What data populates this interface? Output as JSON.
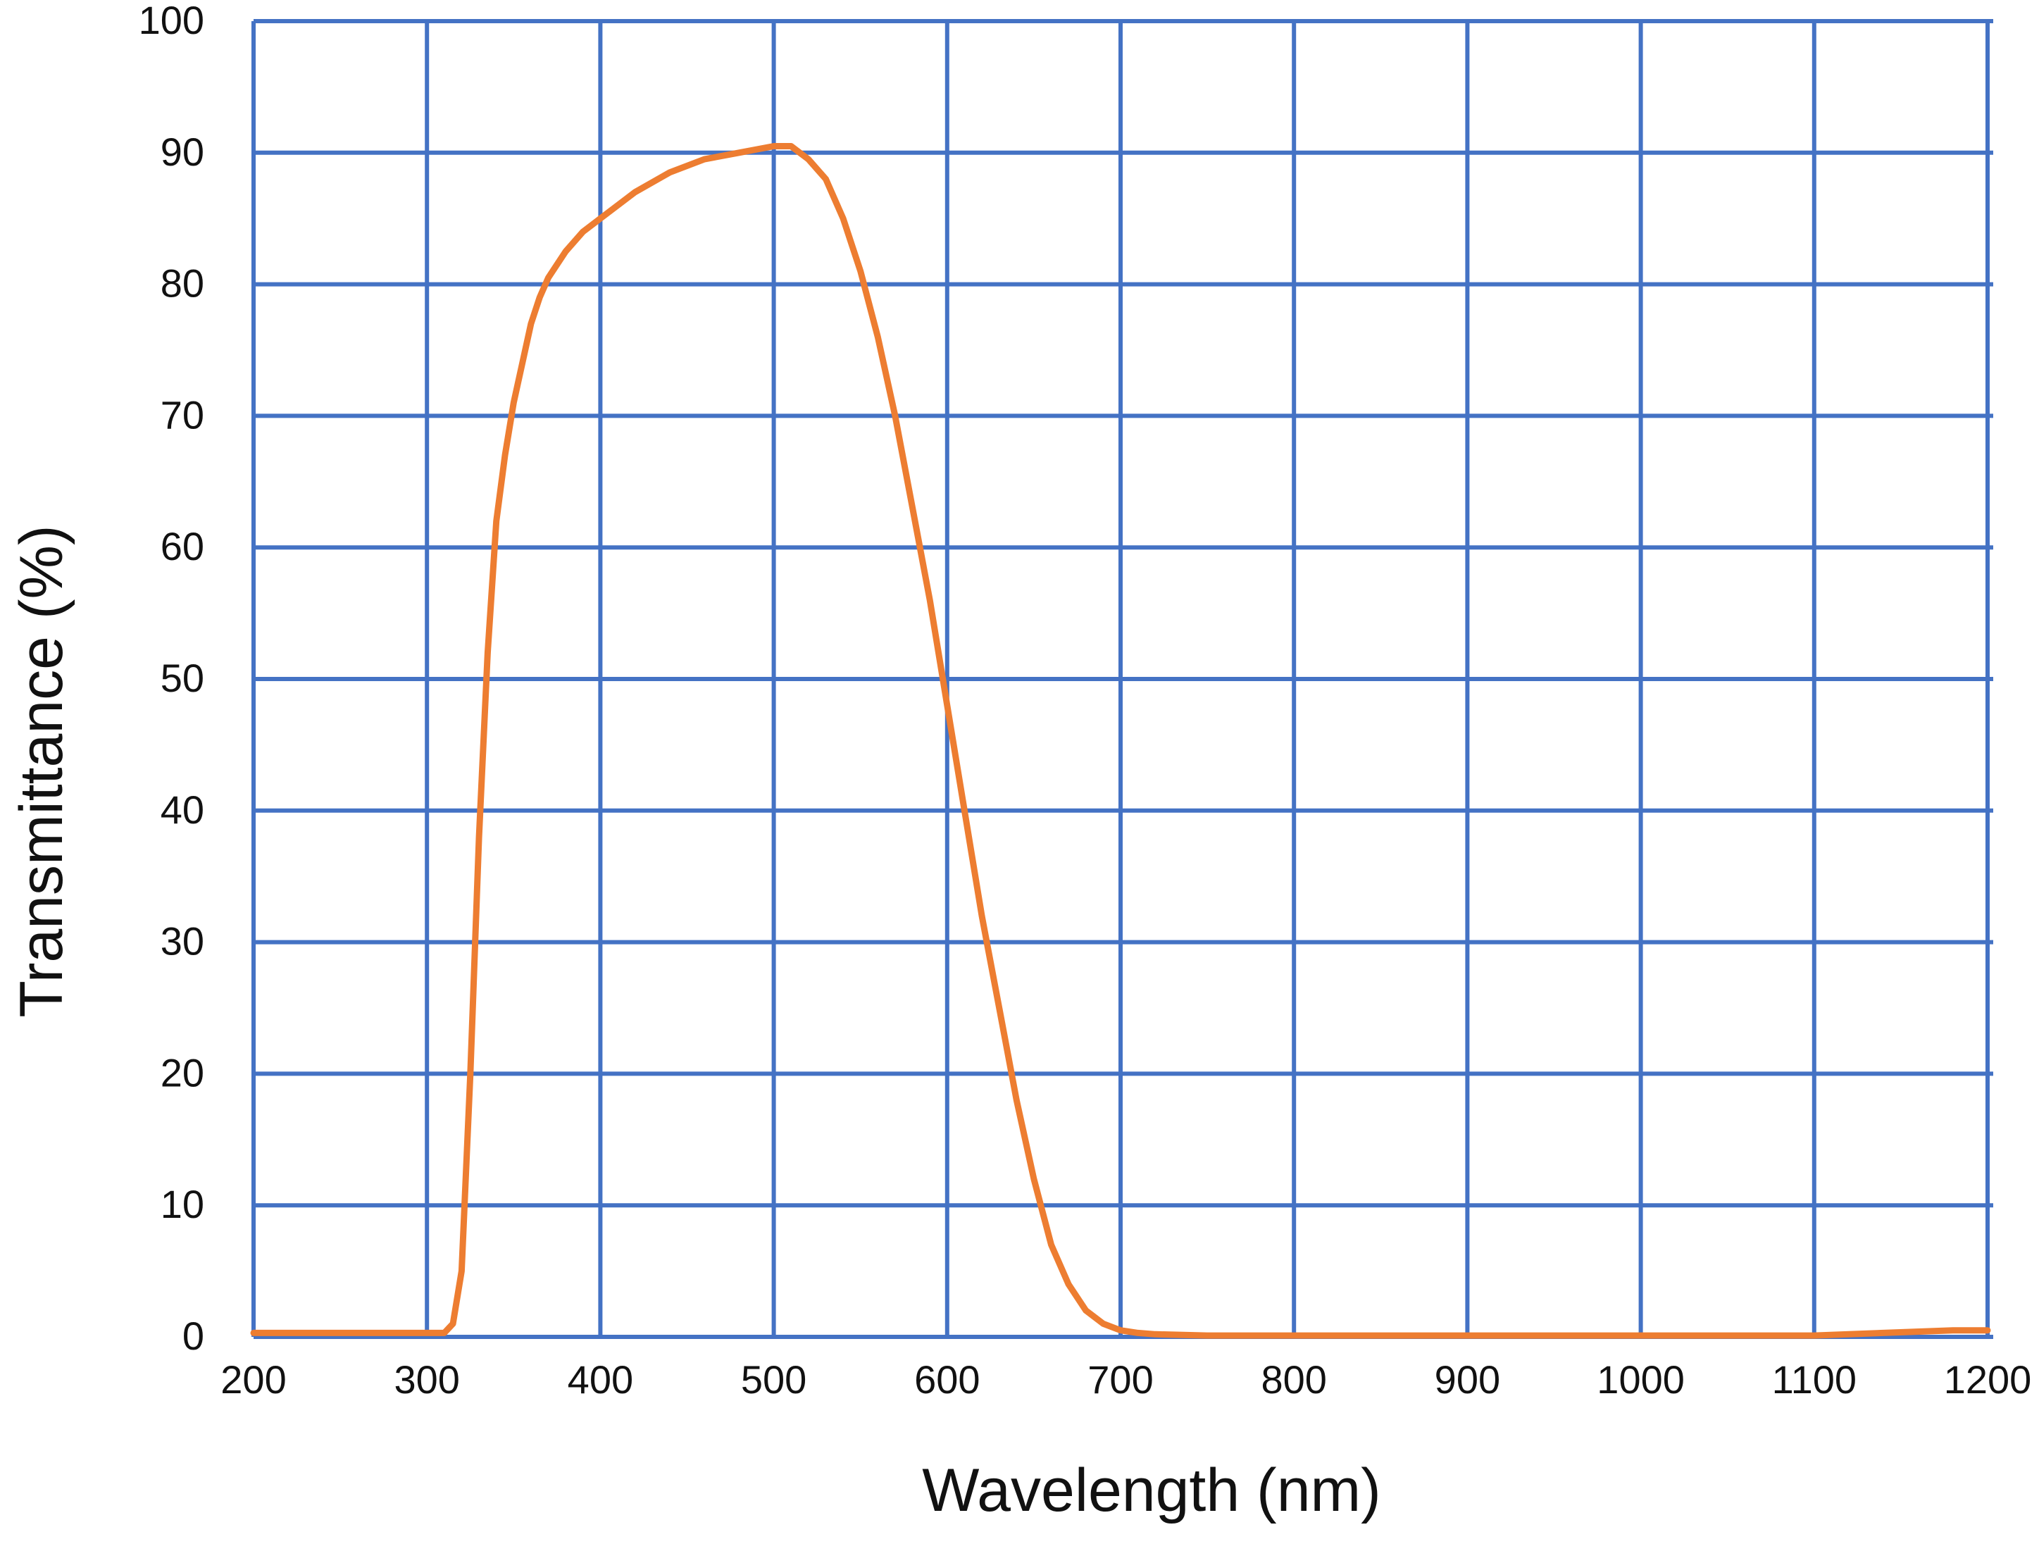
{
  "chart_data": {
    "type": "line",
    "title": "",
    "xlabel": "Wavelength (nm)",
    "ylabel": "Transmittance (%)",
    "xlim": [
      200,
      1200
    ],
    "ylim": [
      0,
      100
    ],
    "x_ticks": [
      200,
      300,
      400,
      500,
      600,
      700,
      800,
      900,
      1000,
      1100,
      1200
    ],
    "x_tick_labels": [
      "200",
      "300",
      "400",
      "500",
      "600",
      "700",
      "800",
      "900",
      "1000",
      "1100",
      "1200"
    ],
    "y_ticks": [
      0,
      10,
      20,
      30,
      40,
      50,
      60,
      70,
      80,
      90,
      100
    ],
    "y_tick_labels": [
      "0",
      "10",
      "20",
      "30",
      "40",
      "50",
      "60",
      "70",
      "80",
      "90",
      "100"
    ],
    "grid": true,
    "legend": "none",
    "colors": {
      "grid": "#4472c4",
      "series": "#ed7d31"
    },
    "series": [
      {
        "name": "Transmittance",
        "x": [
          200,
          250,
          300,
          310,
          315,
          320,
          325,
          330,
          335,
          340,
          345,
          350,
          355,
          360,
          365,
          370,
          380,
          390,
          400,
          420,
          440,
          460,
          480,
          500,
          510,
          520,
          530,
          540,
          550,
          560,
          570,
          580,
          590,
          600,
          610,
          620,
          630,
          640,
          650,
          660,
          670,
          680,
          690,
          700,
          710,
          720,
          750,
          800,
          900,
          1000,
          1100,
          1180,
          1200
        ],
        "y": [
          0.3,
          0.3,
          0.3,
          0.3,
          1,
          5,
          20,
          38,
          52,
          62,
          67,
          71,
          74,
          77,
          79,
          80.5,
          82.5,
          84,
          85,
          87,
          88.5,
          89.5,
          90,
          90.5,
          90.5,
          89.5,
          88,
          85,
          81,
          76,
          70,
          63,
          56,
          48,
          40,
          32,
          25,
          18,
          12,
          7,
          4,
          2,
          1,
          0.5,
          0.3,
          0.2,
          0.1,
          0.1,
          0.1,
          0.1,
          0.1,
          0.5,
          0.5
        ]
      }
    ]
  }
}
